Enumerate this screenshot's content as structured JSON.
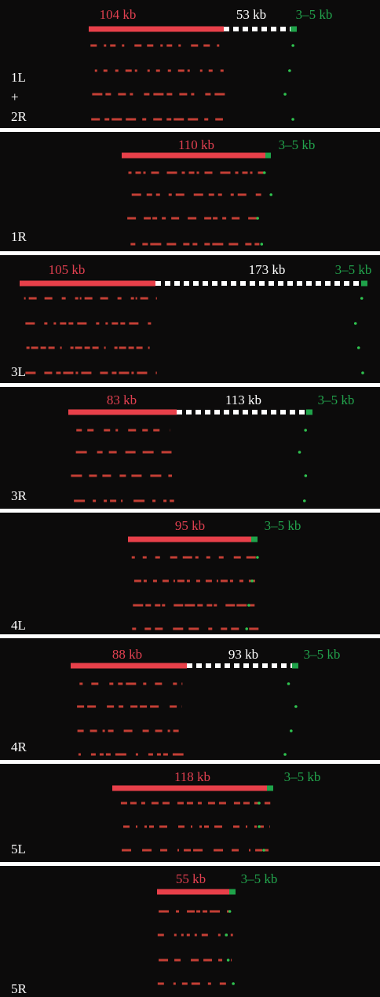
{
  "panels": [
    {
      "label": [
        "1L",
        "+",
        "2R"
      ],
      "red_label": "104 kb",
      "gap_label": "53 kb",
      "green_label": "3–5 kb"
    },
    {
      "label": [
        "1R"
      ],
      "red_label": "110 kb",
      "green_label": "3–5 kb"
    },
    {
      "label": [
        "3L"
      ],
      "red_label": "105 kb",
      "gap_label": "173 kb",
      "green_label": "3–5 kb"
    },
    {
      "label": [
        "3R"
      ],
      "red_label": "83 kb",
      "gap_label": "113 kb",
      "green_label": "3–5 kb"
    },
    {
      "label": [
        "4L"
      ],
      "red_label": "95 kb",
      "green_label": "3–5 kb"
    },
    {
      "label": [
        "4R"
      ],
      "red_label": "88 kb",
      "gap_label": "93 kb",
      "green_label": "3–5 kb"
    },
    {
      "label": [
        "5L"
      ],
      "red_label": "118 kb",
      "green_label": "3–5 kb"
    },
    {
      "label": [
        "5R"
      ],
      "red_label": "55 kb",
      "green_label": "3–5 kb"
    }
  ]
}
